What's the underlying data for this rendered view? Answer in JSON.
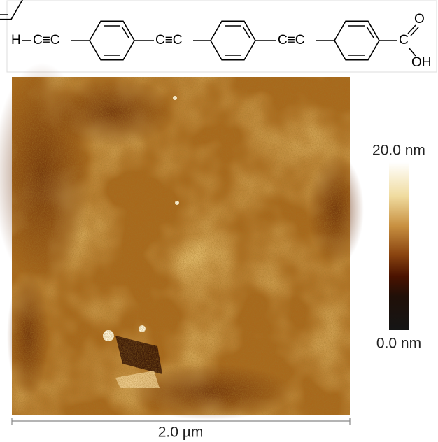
{
  "structure": {
    "hydrogen": "H",
    "alkynes": [
      "C≡C",
      "C≡C",
      "C≡C"
    ],
    "carboxyl": {
      "carbon": "C",
      "oxygen": "O",
      "hydroxyl": "OH"
    }
  },
  "colorbar": {
    "max_label": "20.0 nm",
    "min_label": "0.0 nm"
  },
  "scale_bar": {
    "label": "2.0 µm"
  }
}
